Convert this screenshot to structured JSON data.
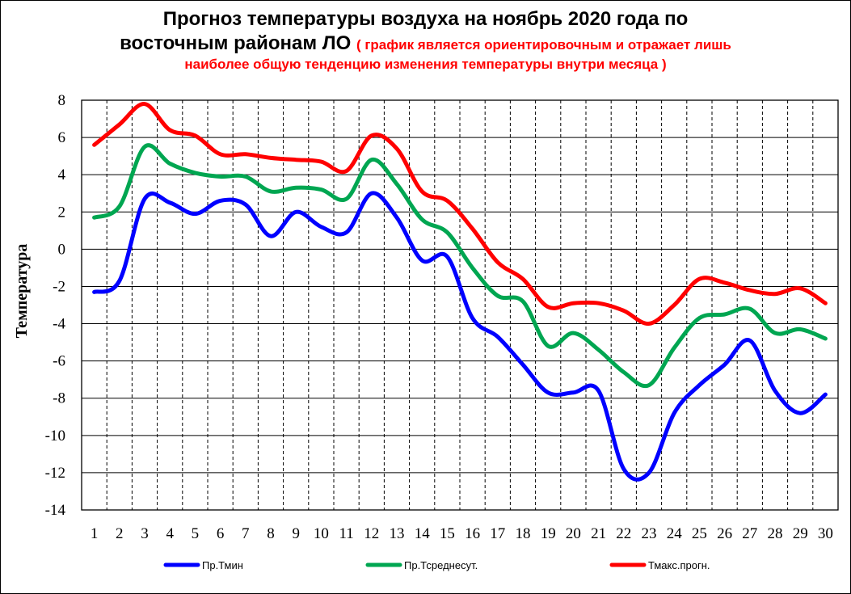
{
  "title": {
    "line1": "Прогноз температуры  воздуха на ноябрь 2020 года  по",
    "line2": "восточным  районам ЛО",
    "note_part1": "( график является ориентировочным и отражает лишь",
    "note_part2": "наиболее общую тенденцию изменения температуры внутри месяца )"
  },
  "chart_data": {
    "type": "line",
    "ylabel": "Температура",
    "xlabel": "",
    "ylim": [
      -14,
      8
    ],
    "yticks": [
      8,
      6,
      4,
      2,
      0,
      -2,
      -4,
      -6,
      -8,
      -10,
      -12,
      -14
    ],
    "grid": true,
    "legend_position": "bottom",
    "x": [
      1,
      2,
      3,
      4,
      5,
      6,
      7,
      8,
      9,
      10,
      11,
      12,
      13,
      14,
      15,
      16,
      17,
      18,
      19,
      20,
      21,
      22,
      23,
      24,
      25,
      26,
      27,
      28,
      29,
      30
    ],
    "series": [
      {
        "name": "Пр.Тмин",
        "color": "#0000ff",
        "values": [
          -2.3,
          -1.7,
          2.7,
          2.5,
          1.9,
          2.6,
          2.4,
          0.7,
          2.0,
          1.2,
          0.9,
          3.0,
          1.7,
          -0.6,
          -0.4,
          -3.7,
          -4.7,
          -6.2,
          -7.7,
          -7.7,
          -7.6,
          -11.8,
          -12.0,
          -8.8,
          -7.3,
          -6.2,
          -4.9,
          -7.6,
          -8.8,
          -7.8
        ]
      },
      {
        "name": "Пр.Тсреднесут.",
        "color": "#00a651",
        "values": [
          1.7,
          2.3,
          5.5,
          4.6,
          4.1,
          3.9,
          3.9,
          3.1,
          3.3,
          3.2,
          2.7,
          4.8,
          3.5,
          1.6,
          0.9,
          -1.0,
          -2.5,
          -2.8,
          -5.2,
          -4.5,
          -5.4,
          -6.6,
          -7.3,
          -5.3,
          -3.7,
          -3.5,
          -3.2,
          -4.5,
          -4.3,
          -4.8
        ]
      },
      {
        "name": "Тмакс.прогн.",
        "color": "#ff0000",
        "values": [
          5.6,
          6.7,
          7.8,
          6.4,
          6.1,
          5.1,
          5.1,
          4.9,
          4.8,
          4.7,
          4.2,
          6.1,
          5.4,
          3.1,
          2.6,
          1.1,
          -0.7,
          -1.6,
          -3.1,
          -2.9,
          -2.9,
          -3.3,
          -4.0,
          -3.0,
          -1.6,
          -1.8,
          -2.2,
          -2.4,
          -2.1,
          -2.9
        ]
      }
    ]
  }
}
